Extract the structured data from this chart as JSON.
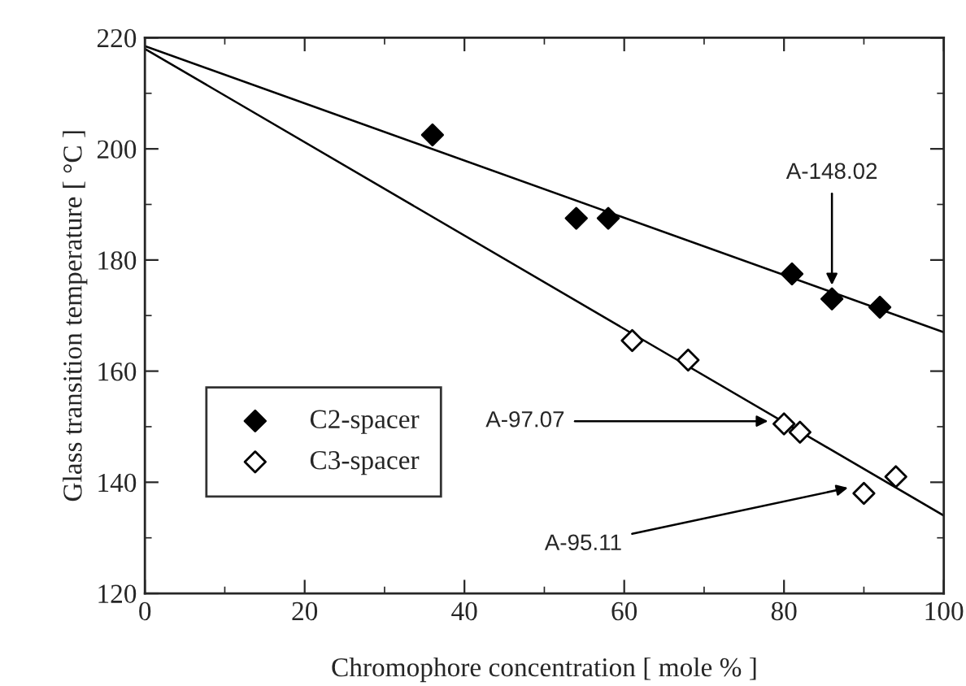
{
  "chart_data": {
    "type": "scatter",
    "xlabel": "Chromophore concentration [ mole % ]",
    "ylabel": "Glass transition temperature [ °C ]",
    "xlim": [
      0,
      100
    ],
    "ylim": [
      120,
      220
    ],
    "xticks": [
      0,
      20,
      40,
      60,
      80,
      100
    ],
    "yticks": [
      120,
      140,
      160,
      180,
      200,
      220
    ],
    "grid": false,
    "legend": "lower left",
    "series": [
      {
        "name": "C2-spacer",
        "marker": "diamond",
        "color": "#000000",
        "x": [
          36,
          54,
          58,
          81,
          86,
          92
        ],
        "values": [
          202.5,
          187.5,
          187.5,
          177.5,
          173,
          171.5
        ]
      },
      {
        "name": "C3-spacer",
        "marker": "diamond",
        "color": "#ffffff",
        "x": [
          61,
          68,
          80,
          82,
          90,
          94
        ],
        "values": [
          165.5,
          162,
          150.5,
          149,
          138,
          141
        ]
      },
      {
        "type": "line",
        "marker": "none",
        "color": "#000000",
        "x": [
          0,
          100
        ],
        "values": [
          218.5,
          167
        ]
      },
      {
        "type": "line",
        "marker": "none",
        "color": "#000000",
        "x": [
          0,
          100
        ],
        "values": [
          218,
          134
        ]
      }
    ],
    "annotations": [
      {
        "text": "A-148.02",
        "x": 86,
        "y": 175.5
      },
      {
        "text": "A-97.07",
        "x": 78,
        "y": 151
      },
      {
        "text": "A-95.11",
        "x": 88,
        "y": 139
      }
    ]
  }
}
